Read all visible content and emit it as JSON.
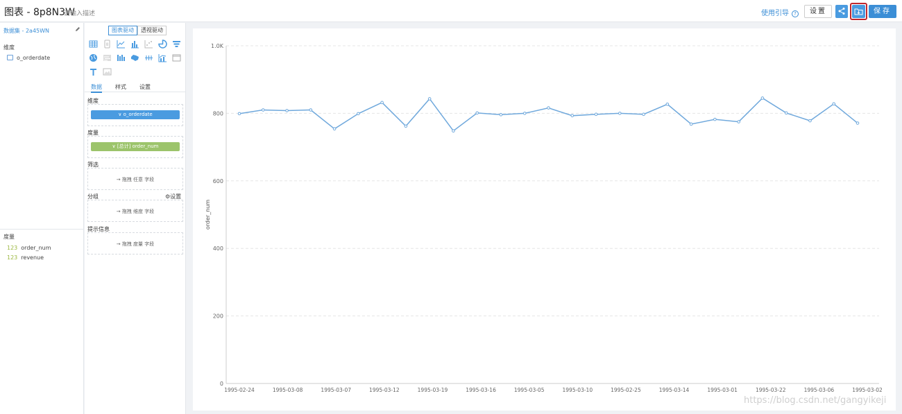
{
  "header": {
    "title": "图表 - 8p8N3W",
    "description": "请输入描述",
    "guide_label": "使用引导",
    "settings_label": "设置",
    "save_label": "保存"
  },
  "sidebar": {
    "dataset_label": "数据集 - 2a45WN",
    "dimensions_heading": "维度",
    "dimensions": [
      "o_orderdate"
    ],
    "measures_heading": "度量",
    "measures": [
      {
        "type": "123",
        "name": "order_num"
      },
      {
        "type": "123",
        "name": "revenue"
      }
    ]
  },
  "config": {
    "mode_chart": "图表驱动",
    "mode_pivot": "透视驱动",
    "tabs": [
      "数据",
      "样式",
      "设置"
    ],
    "dimension_zone": "维度",
    "dimension_pill": "o_orderdate",
    "metric_zone": "度量",
    "metric_pill": "[总计] order_num",
    "filter_zone": "筛选",
    "filter_drop": "拖拽 任意 字段",
    "group_zone": "分组",
    "group_settings": "设置",
    "group_drop": "拖拽 维度 字段",
    "tooltip_zone": "提示信息",
    "tooltip_drop": "拖拽 度量 字段"
  },
  "chart_icons": [
    "table-icon",
    "number-icon",
    "line-chart-icon",
    "bar-chart-icon",
    "scatter-icon",
    "pie-icon",
    "funnel-icon",
    "map-icon",
    "word-cloud-icon",
    "waterfall-icon",
    "china-map-icon",
    "parallel-icon",
    "combo-chart-icon",
    "board-icon",
    "text-icon",
    "image-icon"
  ],
  "watermark": "https://blog.csdn.net/gangyikeji",
  "chart_data": {
    "type": "line",
    "xlabel": "",
    "ylabel": "order_num",
    "ylim": [
      0,
      1000
    ],
    "y_ticks": [
      "0",
      "200",
      "400",
      "600",
      "800",
      "1.0K"
    ],
    "x_tick_labels": [
      "1995-02-24",
      "1995-03-08",
      "1995-03-07",
      "1995-03-12",
      "1995-03-19",
      "1995-03-16",
      "1995-03-05",
      "1995-03-10",
      "1995-02-25",
      "1995-03-14",
      "1995-03-01",
      "1995-03-22",
      "1995-03-06",
      "1995-03-02"
    ],
    "color": "#6fa8dc",
    "values": [
      799,
      810,
      808,
      810,
      754,
      799,
      832,
      762,
      843,
      748,
      801,
      796,
      800,
      816,
      793,
      797,
      800,
      797,
      827,
      768,
      782,
      775,
      845,
      801,
      778,
      828,
      771
    ]
  }
}
